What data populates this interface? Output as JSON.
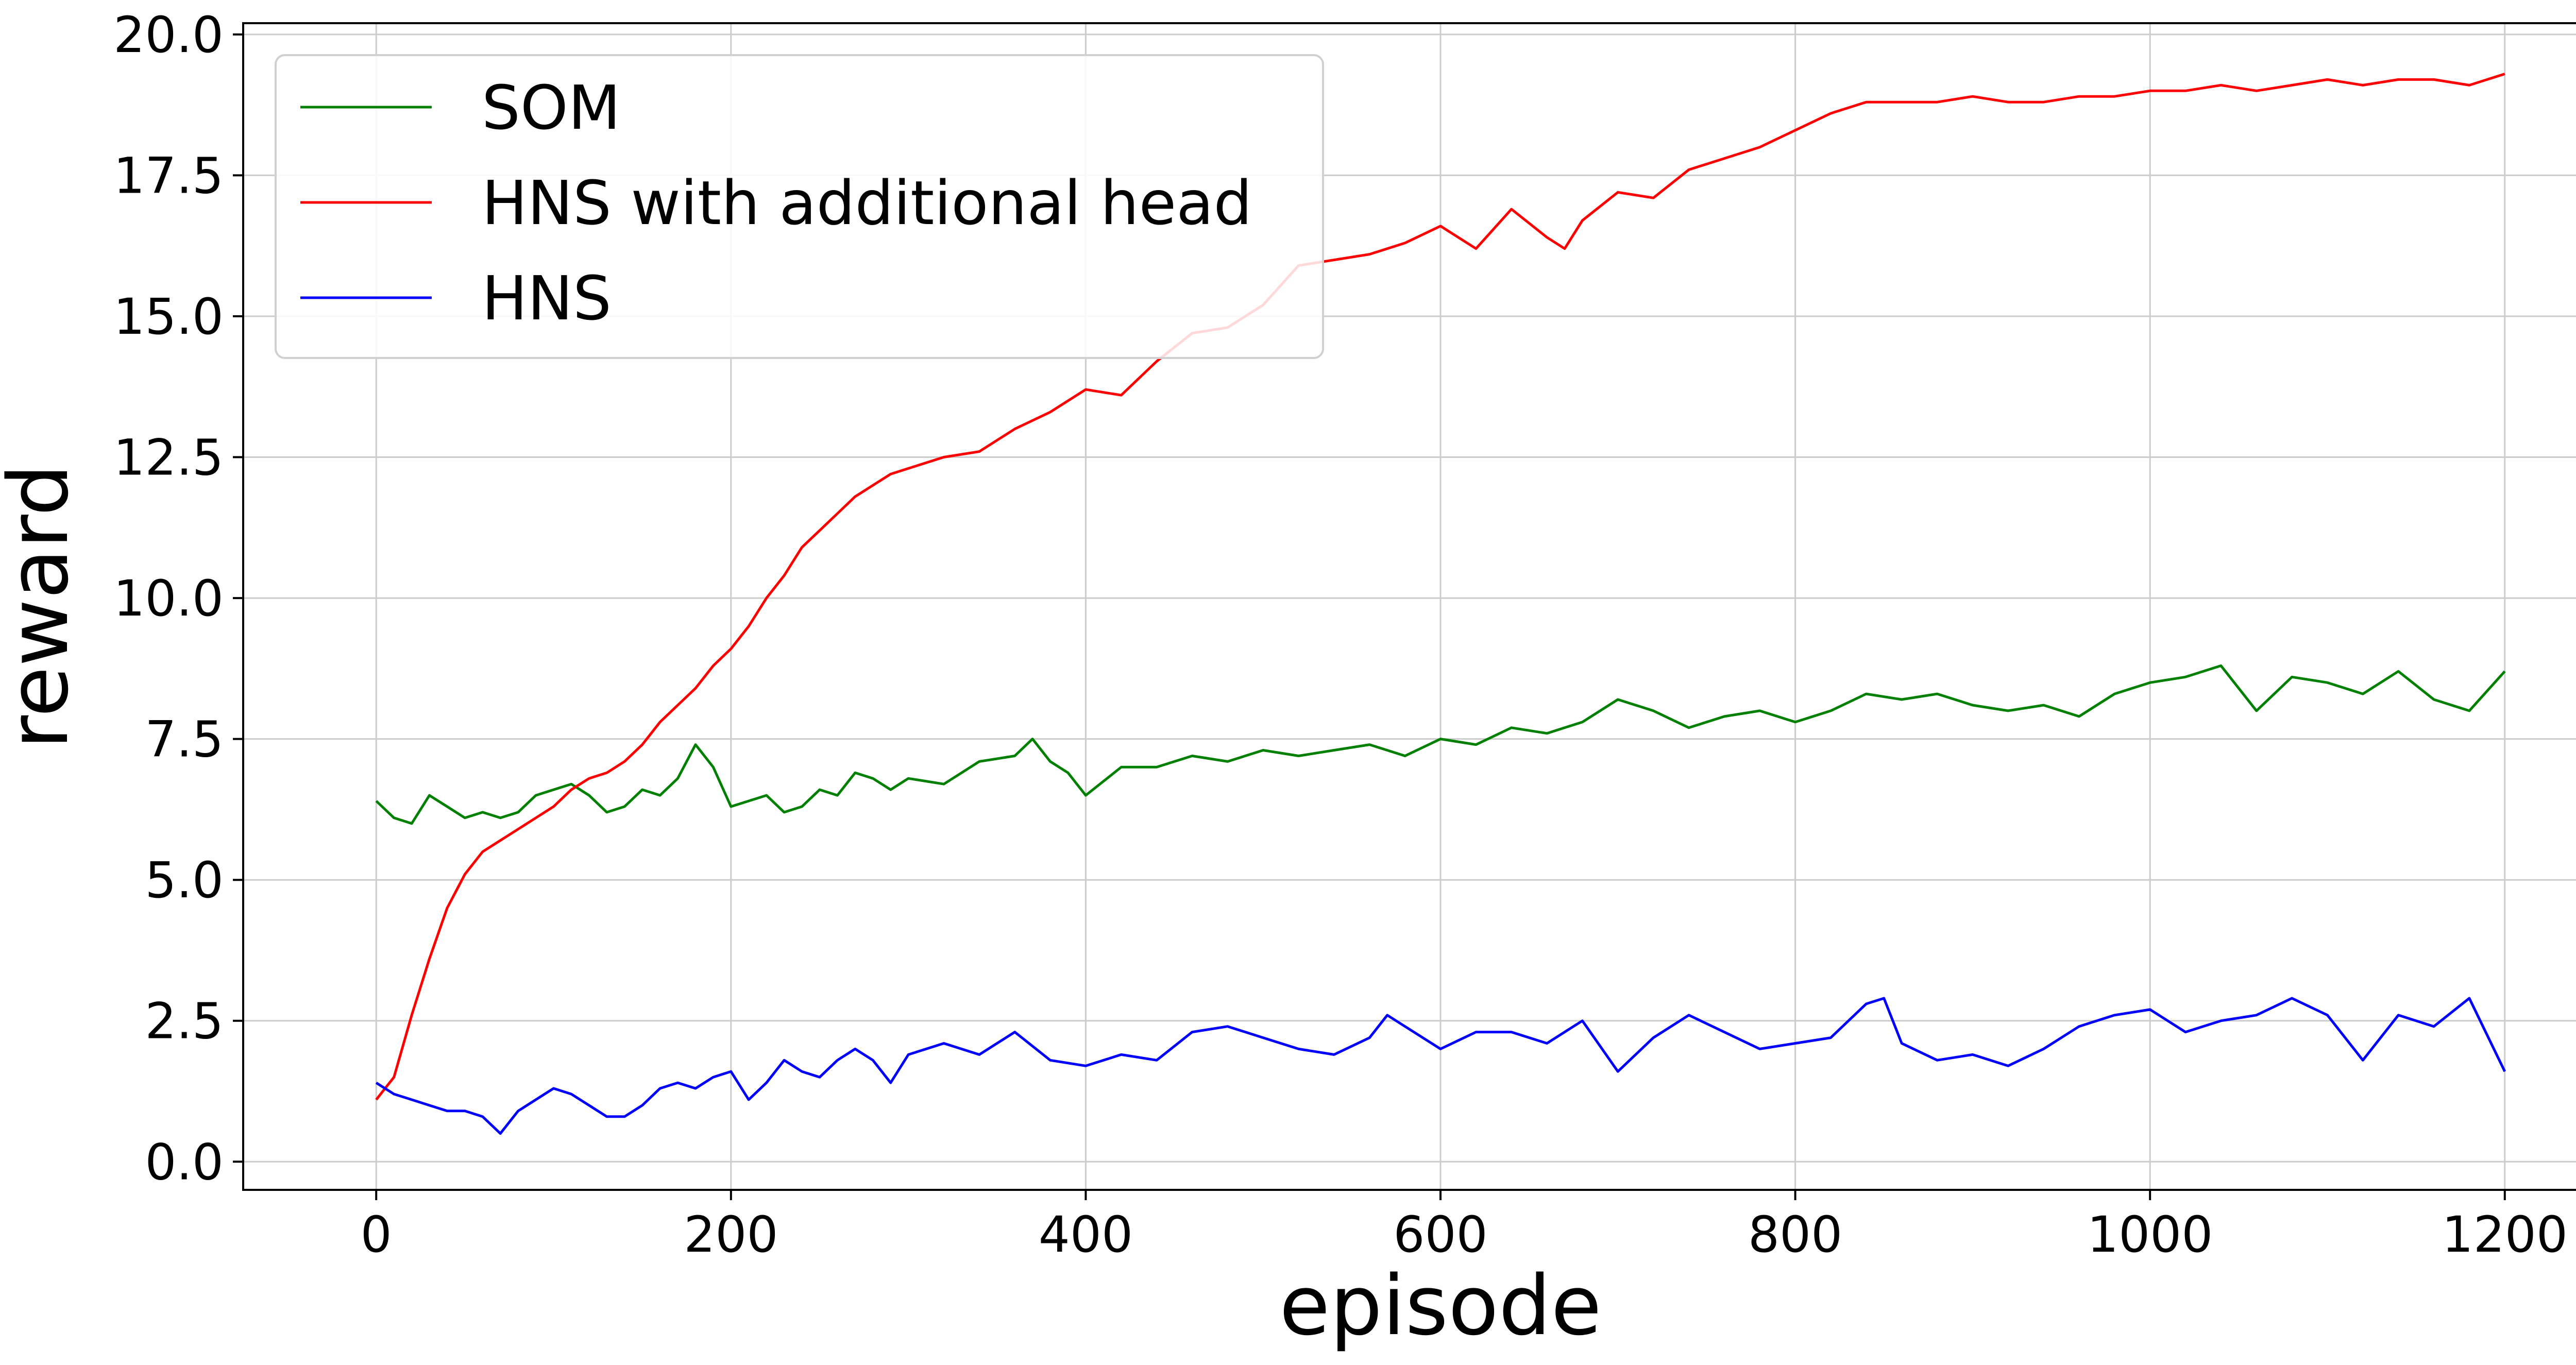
{
  "chart_data": {
    "type": "line",
    "title": "",
    "xlabel": "episode",
    "ylabel": "reward",
    "xlim": [
      -75,
      1275
    ],
    "ylim": [
      -0.5,
      20.2
    ],
    "xticks": [
      0,
      200,
      400,
      600,
      800,
      1000,
      1200
    ],
    "xtick_labels": [
      "0",
      "200",
      "400",
      "600",
      "800",
      "1000",
      "1200"
    ],
    "yticks": [
      0.0,
      2.5,
      5.0,
      7.5,
      10.0,
      12.5,
      15.0,
      17.5,
      20.0
    ],
    "ytick_labels": [
      "0.0",
      "2.5",
      "5.0",
      "7.5",
      "10.0",
      "12.5",
      "15.0",
      "17.5",
      "20.0"
    ],
    "grid": true,
    "legend_position": "top-left",
    "series": [
      {
        "name": "SOM",
        "color": "#008000",
        "x": [
          0,
          10,
          20,
          30,
          40,
          50,
          60,
          70,
          80,
          90,
          100,
          110,
          120,
          130,
          140,
          150,
          160,
          170,
          180,
          190,
          200,
          210,
          220,
          230,
          240,
          250,
          260,
          270,
          280,
          290,
          300,
          320,
          340,
          360,
          370,
          380,
          390,
          400,
          420,
          440,
          460,
          480,
          500,
          520,
          540,
          560,
          580,
          600,
          620,
          640,
          660,
          680,
          700,
          720,
          740,
          760,
          780,
          800,
          820,
          840,
          860,
          880,
          900,
          920,
          940,
          960,
          980,
          1000,
          1020,
          1040,
          1060,
          1080,
          1100,
          1120,
          1140,
          1160,
          1180,
          1200
        ],
        "values": [
          6.4,
          6.1,
          6.0,
          6.5,
          6.3,
          6.1,
          6.2,
          6.1,
          6.2,
          6.5,
          6.6,
          6.7,
          6.5,
          6.2,
          6.3,
          6.6,
          6.5,
          6.8,
          7.4,
          7.0,
          6.3,
          6.4,
          6.5,
          6.2,
          6.3,
          6.6,
          6.5,
          6.9,
          6.8,
          6.6,
          6.8,
          6.7,
          7.1,
          7.2,
          7.5,
          7.1,
          6.9,
          6.5,
          7.0,
          7.0,
          7.2,
          7.1,
          7.3,
          7.2,
          7.3,
          7.4,
          7.2,
          7.5,
          7.4,
          7.7,
          7.6,
          7.8,
          8.2,
          8.0,
          7.7,
          7.9,
          8.0,
          7.8,
          8.0,
          8.3,
          8.2,
          8.3,
          8.1,
          8.0,
          8.1,
          7.9,
          8.3,
          8.5,
          8.6,
          8.8,
          8.0,
          8.6,
          8.5,
          8.3,
          8.7,
          8.2,
          8.0,
          8.7
        ]
      },
      {
        "name": "HNS with additional head",
        "color": "#ff0000",
        "x": [
          0,
          10,
          20,
          30,
          40,
          50,
          60,
          70,
          80,
          90,
          100,
          110,
          120,
          130,
          140,
          150,
          160,
          170,
          180,
          190,
          200,
          210,
          220,
          230,
          240,
          250,
          260,
          270,
          280,
          290,
          300,
          320,
          340,
          360,
          380,
          400,
          420,
          440,
          460,
          480,
          500,
          520,
          540,
          560,
          580,
          600,
          620,
          640,
          660,
          670,
          680,
          700,
          720,
          740,
          760,
          780,
          800,
          820,
          840,
          860,
          880,
          900,
          920,
          940,
          960,
          980,
          1000,
          1020,
          1040,
          1060,
          1080,
          1100,
          1120,
          1140,
          1160,
          1180,
          1200
        ],
        "values": [
          1.1,
          1.5,
          2.6,
          3.6,
          4.5,
          5.1,
          5.5,
          5.7,
          5.9,
          6.1,
          6.3,
          6.6,
          6.8,
          6.9,
          7.1,
          7.4,
          7.8,
          8.1,
          8.4,
          8.8,
          9.1,
          9.5,
          10.0,
          10.4,
          10.9,
          11.2,
          11.5,
          11.8,
          12.0,
          12.2,
          12.3,
          12.5,
          12.6,
          13.0,
          13.3,
          13.7,
          13.6,
          14.2,
          14.7,
          14.8,
          15.2,
          15.9,
          16.0,
          16.1,
          16.3,
          16.6,
          16.2,
          16.9,
          16.4,
          16.2,
          16.7,
          17.2,
          17.1,
          17.6,
          17.8,
          18.0,
          18.3,
          18.6,
          18.8,
          18.8,
          18.8,
          18.9,
          18.8,
          18.8,
          18.9,
          18.9,
          19.0,
          19.0,
          19.1,
          19.0,
          19.1,
          19.2,
          19.1,
          19.2,
          19.2,
          19.1,
          19.3
        ]
      },
      {
        "name": "HNS",
        "color": "#0000ff",
        "x": [
          0,
          10,
          20,
          30,
          40,
          50,
          60,
          70,
          80,
          90,
          100,
          110,
          120,
          130,
          140,
          150,
          160,
          170,
          180,
          190,
          200,
          210,
          220,
          230,
          240,
          250,
          260,
          270,
          280,
          290,
          300,
          320,
          340,
          360,
          380,
          400,
          420,
          440,
          460,
          480,
          500,
          520,
          540,
          560,
          570,
          580,
          600,
          620,
          640,
          660,
          680,
          700,
          720,
          740,
          760,
          780,
          800,
          820,
          840,
          850,
          860,
          880,
          900,
          920,
          940,
          960,
          980,
          1000,
          1020,
          1040,
          1060,
          1080,
          1100,
          1120,
          1140,
          1160,
          1180,
          1200
        ],
        "values": [
          1.4,
          1.2,
          1.1,
          1.0,
          0.9,
          0.9,
          0.8,
          0.5,
          0.9,
          1.1,
          1.3,
          1.2,
          1.0,
          0.8,
          0.8,
          1.0,
          1.3,
          1.4,
          1.3,
          1.5,
          1.6,
          1.1,
          1.4,
          1.8,
          1.6,
          1.5,
          1.8,
          2.0,
          1.8,
          1.4,
          1.9,
          2.1,
          1.9,
          2.3,
          1.8,
          1.7,
          1.9,
          1.8,
          2.3,
          2.4,
          2.2,
          2.0,
          1.9,
          2.2,
          2.6,
          2.4,
          2.0,
          2.3,
          2.3,
          2.1,
          2.5,
          1.6,
          2.2,
          2.6,
          2.3,
          2.0,
          2.1,
          2.2,
          2.8,
          2.9,
          2.1,
          1.8,
          1.9,
          1.7,
          2.0,
          2.4,
          2.6,
          2.7,
          2.3,
          2.5,
          2.6,
          2.9,
          2.6,
          1.8,
          2.6,
          2.4,
          2.9,
          1.6
        ]
      }
    ]
  }
}
